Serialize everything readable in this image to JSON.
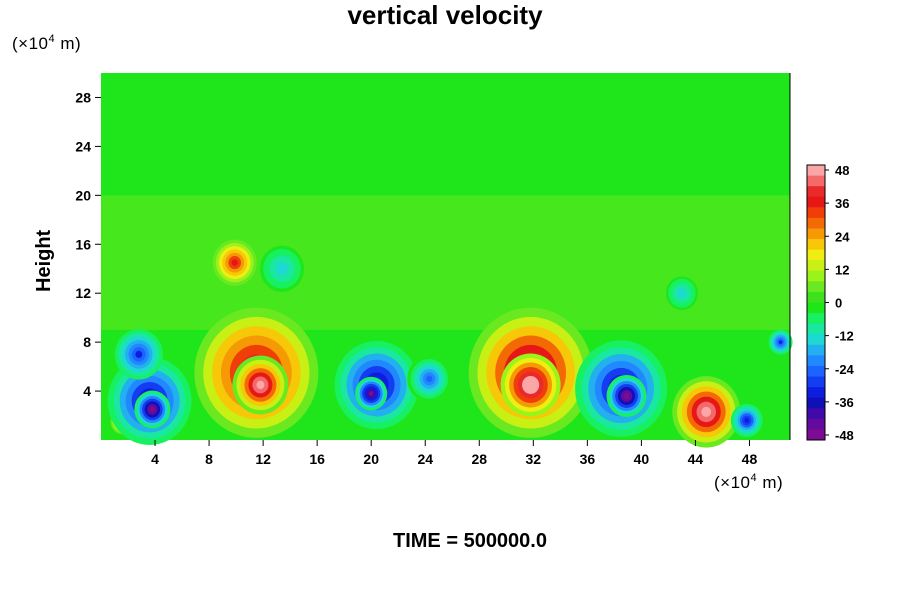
{
  "chart_data": {
    "type": "heatmap",
    "title": "vertical velocity",
    "ylabel": "Height",
    "y_unit_label": {
      "prefix": "(×10",
      "exp": "4",
      "suffix": " m)"
    },
    "x_unit_label": {
      "prefix": "(×10",
      "exp": "4",
      "suffix": " m)"
    },
    "xlim": [
      0,
      51
    ],
    "ylim": [
      0,
      30
    ],
    "x_ticks": [
      4,
      8,
      12,
      16,
      20,
      24,
      28,
      32,
      36,
      40,
      44,
      48
    ],
    "y_ticks": [
      4,
      8,
      12,
      16,
      20,
      24,
      28
    ],
    "colorbar": {
      "range": [
        -48,
        48
      ],
      "ticks": [
        48,
        36,
        24,
        12,
        0,
        -12,
        -24,
        -36,
        -48
      ],
      "colors": [
        "#fba7a7",
        "#f46a6a",
        "#ea2a2a",
        "#e81717",
        "#ef3e07",
        "#f36a05",
        "#f59a05",
        "#f7c808",
        "#eeee11",
        "#c8f014",
        "#9af41a",
        "#6ae820",
        "#3ee21c",
        "#1ee61a",
        "#17f060",
        "#1ae8a0",
        "#1ed8d4",
        "#22b0ee",
        "#2288ff",
        "#1c64ff",
        "#143cf0",
        "#0e1ee0",
        "#1010b8",
        "#400aa8",
        "#640a9c",
        "#7c0c94"
      ]
    },
    "background_value": 0,
    "features": [
      {
        "x": 11.5,
        "y": 5.5,
        "w": 62,
        "peak": 44
      },
      {
        "x": 11.8,
        "y": 4.5,
        "w": 28,
        "peak": 50
      },
      {
        "x": 31.8,
        "y": 5.5,
        "w": 62,
        "peak": 48
      },
      {
        "x": 31.8,
        "y": 4.5,
        "w": 30,
        "peak": 52
      },
      {
        "x": 44.8,
        "y": 2.3,
        "w": 34,
        "peak": 48
      },
      {
        "x": 1.6,
        "y": 1.5,
        "w": 12,
        "peak": 28
      },
      {
        "x": 9.9,
        "y": 14.5,
        "w": 22,
        "peak": 36
      },
      {
        "x": 3.6,
        "y": 3.2,
        "w": 42,
        "peak": -38
      },
      {
        "x": 3.8,
        "y": 2.5,
        "w": 18,
        "peak": -48
      },
      {
        "x": 2.8,
        "y": 7.0,
        "w": 24,
        "peak": -30
      },
      {
        "x": 20.4,
        "y": 4.5,
        "w": 42,
        "peak": -38
      },
      {
        "x": 20.0,
        "y": 3.8,
        "w": 16,
        "peak": -46
      },
      {
        "x": 24.3,
        "y": 5.0,
        "w": 22,
        "peak": -24
      },
      {
        "x": 38.5,
        "y": 4.2,
        "w": 46,
        "peak": -38
      },
      {
        "x": 38.9,
        "y": 3.6,
        "w": 20,
        "peak": -48
      },
      {
        "x": 47.8,
        "y": 1.6,
        "w": 16,
        "peak": -32
      },
      {
        "x": 13.4,
        "y": 14.0,
        "w": 22,
        "peak": -14
      },
      {
        "x": 43.0,
        "y": 12.0,
        "w": 16,
        "peak": -14
      },
      {
        "x": 50.3,
        "y": 8.0,
        "w": 12,
        "peak": -30
      }
    ],
    "time_label": "TIME = 500000.0"
  }
}
